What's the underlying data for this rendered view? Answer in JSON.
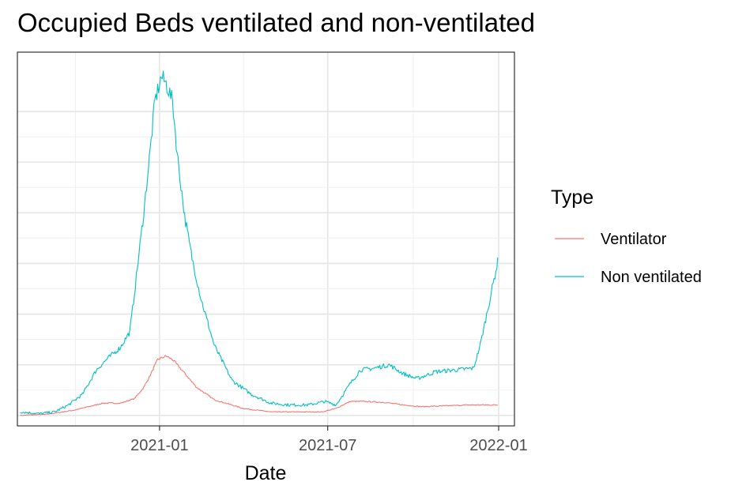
{
  "chart_data": {
    "type": "line",
    "title": "Occupied Beds ventilated and non-ventilated",
    "xlabel": "Date",
    "ylabel": "",
    "x_tick_labels": [
      "2021-01",
      "2021-07",
      "2022-01"
    ],
    "x_ticks": [
      "2021-01-01",
      "2021-07-01",
      "2022-01-01"
    ],
    "xlim": [
      "2020-08-01",
      "2022-01-18"
    ],
    "y_tick_labels_visible": false,
    "ylim": [
      -3,
      104
    ],
    "ytick_values": [
      0,
      14.5,
      29,
      43.5,
      58,
      72.5,
      87
    ],
    "grid": true,
    "legend": {
      "title": "Type",
      "placement": "right"
    },
    "series": [
      {
        "name": "Ventilator",
        "color": "#F8766D",
        "x": [
          "2020-08-04",
          "2020-09-01",
          "2020-10-01",
          "2020-11-01",
          "2020-11-20",
          "2020-12-05",
          "2020-12-15",
          "2020-12-22",
          "2020-12-30",
          "2021-01-08",
          "2021-01-15",
          "2021-01-25",
          "2021-02-10",
          "2021-03-01",
          "2021-04-01",
          "2021-05-01",
          "2021-06-01",
          "2021-06-25",
          "2021-07-10",
          "2021-07-25",
          "2021-08-10",
          "2021-09-01",
          "2021-09-20",
          "2021-10-10",
          "2021-11-01",
          "2021-12-01",
          "2021-12-31"
        ],
        "y": [
          0,
          0.3,
          1.5,
          3.5,
          3.5,
          4.8,
          8,
          11.5,
          16,
          17,
          16,
          13,
          8,
          4.5,
          2,
          1,
          1,
          1,
          2,
          4,
          4,
          3.7,
          3,
          2.5,
          2.7,
          3,
          3
        ]
      },
      {
        "name": "Non ventilated",
        "color": "#00BFC4",
        "x": [
          "2020-08-04",
          "2020-08-25",
          "2020-09-10",
          "2020-09-25",
          "2020-10-10",
          "2020-10-25",
          "2020-11-05",
          "2020-11-20",
          "2020-11-30",
          "2020-12-05",
          "2020-12-15",
          "2020-12-22",
          "2020-12-27",
          "2021-01-03",
          "2021-01-08",
          "2021-01-15",
          "2021-01-20",
          "2021-01-28",
          "2021-02-05",
          "2021-02-15",
          "2021-03-01",
          "2021-03-20",
          "2021-04-10",
          "2021-05-01",
          "2021-05-20",
          "2021-06-10",
          "2021-06-28",
          "2021-07-10",
          "2021-07-25",
          "2021-08-05",
          "2021-08-20",
          "2021-09-05",
          "2021-09-20",
          "2021-10-05",
          "2021-10-25",
          "2021-11-15",
          "2021-12-05",
          "2021-12-12",
          "2021-12-20",
          "2021-12-31"
        ],
        "y": [
          1,
          0.5,
          1,
          3,
          6,
          13,
          16,
          19.5,
          24,
          35,
          58,
          76,
          90,
          97,
          95,
          90,
          75,
          57,
          45,
          33,
          20,
          10,
          6,
          3.5,
          3,
          3,
          4,
          3,
          9,
          13,
          13.5,
          14.5,
          12,
          10.5,
          12.5,
          13,
          13.5,
          20,
          30,
          44
        ]
      }
    ]
  }
}
